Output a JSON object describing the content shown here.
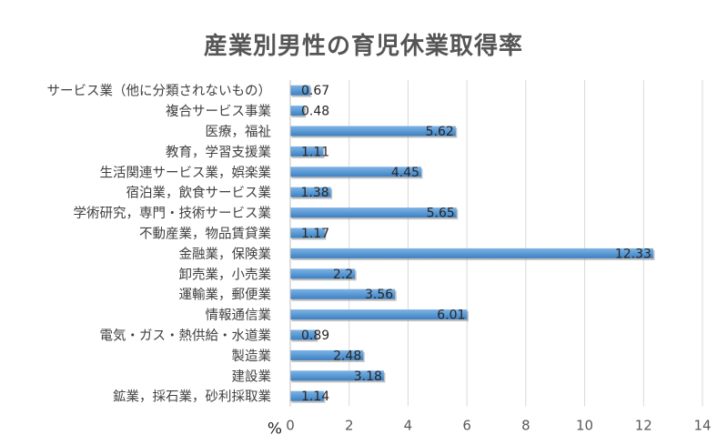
{
  "chart_data": {
    "type": "bar",
    "orientation": "horizontal",
    "title": "産業別男性の育児休業取得率",
    "xlabel": "%",
    "ylabel": "",
    "xlim": [
      0,
      14
    ],
    "x_ticks": [
      0,
      2,
      4,
      6,
      8,
      10,
      12,
      14
    ],
    "grid": true,
    "legend": "none",
    "bar_color": "#5b9bd5",
    "categories": [
      "サービス業（他に分類されないもの）",
      "複合サービス事業",
      "医療，福祉",
      "教育，学習支援業",
      "生活関連サービス業，娯楽業",
      "宿泊業，飲食サービス業",
      "学術研究，専門・技術サービス業",
      "不動産業，物品賃貸業",
      "金融業，保険業",
      "卸売業，小売業",
      "運輸業，郵便業",
      "情報通信業",
      "電気・ガス・熱供給・水道業",
      "製造業",
      "建設業",
      "鉱業，採石業，砂利採取業"
    ],
    "values": [
      0.67,
      0.48,
      5.62,
      1.11,
      4.45,
      1.38,
      5.65,
      1.17,
      12.33,
      2.2,
      3.56,
      6.01,
      0.89,
      2.48,
      3.18,
      1.14
    ],
    "value_labels": [
      "0.67",
      "0.48",
      "5.62",
      "1.11",
      "4.45",
      "1.38",
      "5.65",
      "1.17",
      "12.33",
      "2.2",
      "3.56",
      "6.01",
      "0.89",
      "2.48",
      "3.18",
      "1.14"
    ]
  }
}
